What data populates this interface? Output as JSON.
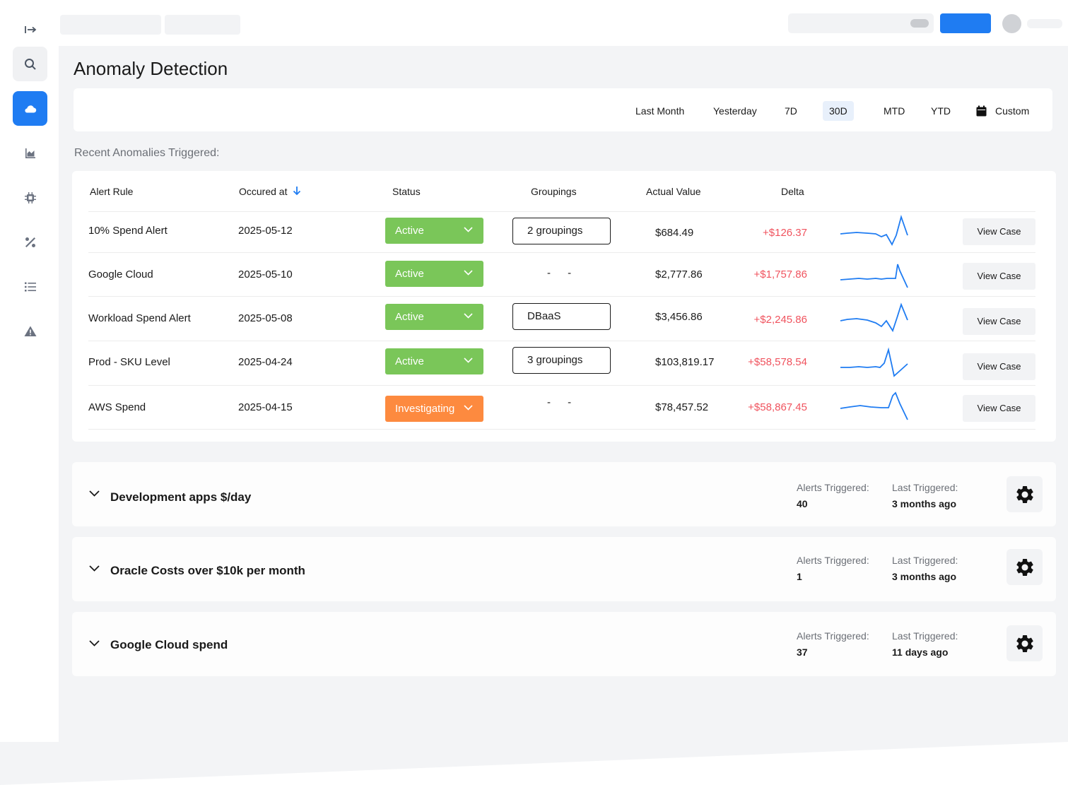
{
  "page": {
    "title": "Anomaly Detection"
  },
  "sidebar": {
    "items": [
      {
        "name": "expand-icon",
        "label": "Expand"
      },
      {
        "name": "search-icon",
        "label": "Search"
      },
      {
        "name": "cloud-icon",
        "label": "Cloud"
      },
      {
        "name": "area-chart-icon",
        "label": "Charts"
      },
      {
        "name": "chip-icon",
        "label": "Compute"
      },
      {
        "name": "percent-icon",
        "label": "Percent"
      },
      {
        "name": "list-icon",
        "label": "List"
      },
      {
        "name": "warning-icon",
        "label": "Anomalies"
      }
    ],
    "active_index": 2,
    "accent_color": "#1f7cf2"
  },
  "date_range": {
    "options": [
      "Last Month",
      "Yesterday",
      "7D",
      "30D",
      "MTD",
      "YTD",
      "Custom"
    ],
    "selected": "30D"
  },
  "recent": {
    "label": "Recent Anomalies Triggered:",
    "columns": [
      "Alert Rule",
      "Occured at",
      "Status",
      "Groupings",
      "Actual Value",
      "Delta"
    ],
    "rows": [
      {
        "rule": "10% Spend Alert",
        "occurred": "2025-05-12",
        "status": "Active",
        "groupings": "2 groupings",
        "actual": "$684.49",
        "delta": "+$126.37",
        "action": "View Case"
      },
      {
        "rule": "Google Cloud",
        "occurred": "2025-05-10",
        "status": "Active",
        "groupings": "- -",
        "actual": "$2,777.86",
        "delta": "+$1,757.86",
        "action": "View Case"
      },
      {
        "rule": "Workload Spend Alert",
        "occurred": "2025-05-08",
        "status": "Active",
        "groupings": "DBaaS",
        "actual": "$3,456.86",
        "delta": "+$2,245.86",
        "action": "View Case"
      },
      {
        "rule": "Prod - SKU Level",
        "occurred": "2025-04-24",
        "status": "Active",
        "groupings": "3 groupings",
        "actual": "$103,819.17",
        "delta": "+$58,578.54",
        "action": "View Case"
      },
      {
        "rule": "AWS Spend",
        "occurred": "2025-04-15",
        "status": "Investigating",
        "groupings": "- -",
        "actual": "$78,457.52",
        "delta": "+$58,867.45",
        "action": "View Case"
      }
    ],
    "colors": {
      "active": "#7ac659",
      "investigating": "#fd8a3f",
      "delta": "#f0535e",
      "sparkline": "#1f7cf2"
    }
  },
  "alerts": {
    "alerts_label": "Alerts Triggered:",
    "last_label": "Last Triggered:",
    "items": [
      {
        "name": "Development apps $/day",
        "alerts_triggered": "40",
        "last_triggered": "3 months ago"
      },
      {
        "name": "Oracle Costs over $10k per month",
        "alerts_triggered": "1",
        "last_triggered": "3 months ago"
      },
      {
        "name": "Google Cloud spend",
        "alerts_triggered": "37",
        "last_triggered": "11 days ago"
      }
    ]
  }
}
